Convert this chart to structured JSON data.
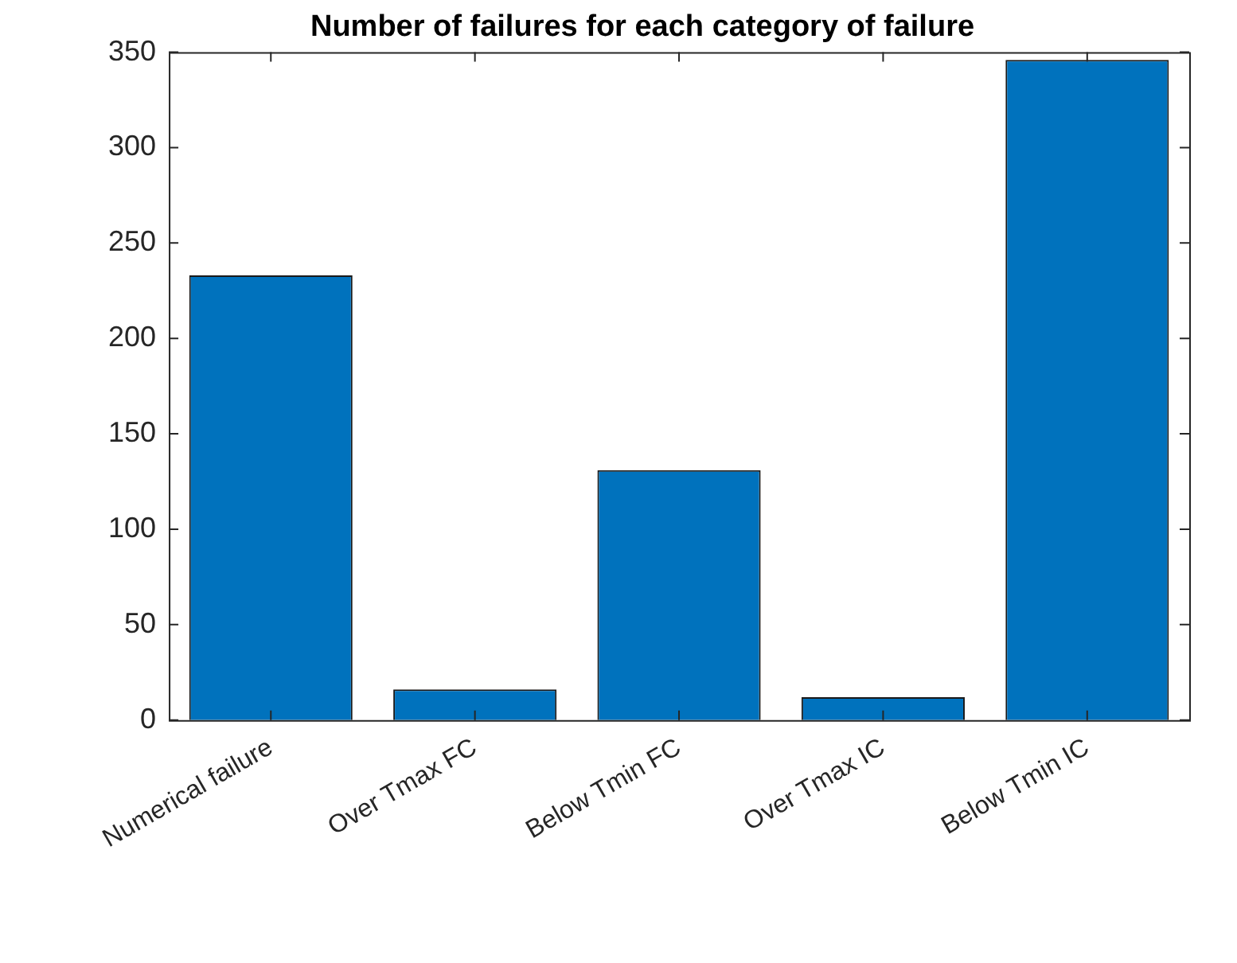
{
  "chart_data": {
    "type": "bar",
    "title": "Number of failures for each category of failure",
    "categories": [
      "Numerical failure",
      "Over Tmax FC",
      "Below Tmin FC",
      "Over Tmax IC",
      "Below Tmin IC"
    ],
    "values": [
      233,
      16,
      131,
      12,
      346
    ],
    "color": "#0072bd",
    "ylim": [
      0,
      350
    ],
    "yticks": [
      0,
      50,
      100,
      150,
      200,
      250,
      300,
      350
    ],
    "grid": false,
    "legend": false
  }
}
